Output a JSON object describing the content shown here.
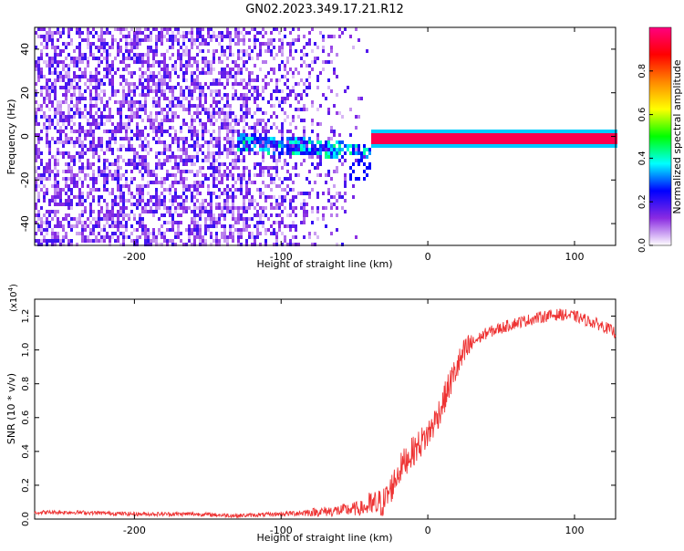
{
  "figure": {
    "title": "GN02.2023.349.17.21.R12"
  },
  "chart_data": [
    {
      "type": "heatmap",
      "xlabel": "Height of straight line (km)",
      "ylabel": "Frequency (Hz)",
      "xlim": [
        -268,
        128
      ],
      "ylim": [
        -50,
        50
      ],
      "x_ticks": [
        -200,
        -100,
        0,
        100
      ],
      "y_ticks": [
        -40,
        -20,
        0,
        20,
        40
      ],
      "colorbar": {
        "label": "Normalized spectral amplitude",
        "ticks": [
          "0.0",
          "0.2",
          "0.4",
          "0.6",
          "0.8"
        ],
        "range": [
          0,
          1
        ],
        "colormap": [
          "#ffffff",
          "#8a2be2",
          "#0000ff",
          "#00ffff",
          "#00ff00",
          "#ffff00",
          "#ff8800",
          "#ff0000",
          "#ff0080"
        ]
      },
      "features": [
        {
          "name": "noise",
          "x_range": [
            -268,
            -40
          ],
          "freq_range": [
            -50,
            50
          ],
          "amplitude": 0.1
        },
        {
          "name": "scattered return",
          "x_range": [
            -130,
            -40
          ],
          "freq_range": [
            -20,
            5
          ],
          "amplitude": 0.3
        },
        {
          "name": "tone",
          "x_range": [
            -40,
            128
          ],
          "freq": 0,
          "amplitude": 0.95
        }
      ]
    },
    {
      "type": "line",
      "xlabel": "Height of straight line (km)",
      "ylabel": "SNR (10 * v/v)",
      "scale_label": "(x10",
      "scale_exponent": "4",
      "scale_close": ")",
      "xlim": [
        -268,
        128
      ],
      "ylim": [
        0,
        1.3
      ],
      "x_ticks": [
        -200,
        -100,
        0,
        100
      ],
      "y_ticks": [
        "0.0",
        "0.2",
        "0.4",
        "0.6",
        "0.8",
        "1.0",
        "1.2"
      ],
      "color": "#ee3333",
      "series": [
        {
          "x": [
            -268,
            -240,
            -200,
            -160,
            -130,
            -100,
            -80,
            -60,
            -40,
            -30,
            -25,
            -20,
            -15,
            -10,
            -5,
            0,
            5,
            10,
            15,
            20,
            25,
            30,
            40,
            50,
            60,
            70,
            80,
            90,
            100,
            110,
            120,
            128
          ],
          "values": [
            0.04,
            0.04,
            0.03,
            0.03,
            0.02,
            0.03,
            0.04,
            0.05,
            0.07,
            0.1,
            0.18,
            0.28,
            0.35,
            0.4,
            0.45,
            0.5,
            0.58,
            0.68,
            0.8,
            0.9,
            0.98,
            1.04,
            1.1,
            1.13,
            1.16,
            1.18,
            1.2,
            1.21,
            1.2,
            1.17,
            1.14,
            1.1
          ]
        }
      ]
    }
  ]
}
